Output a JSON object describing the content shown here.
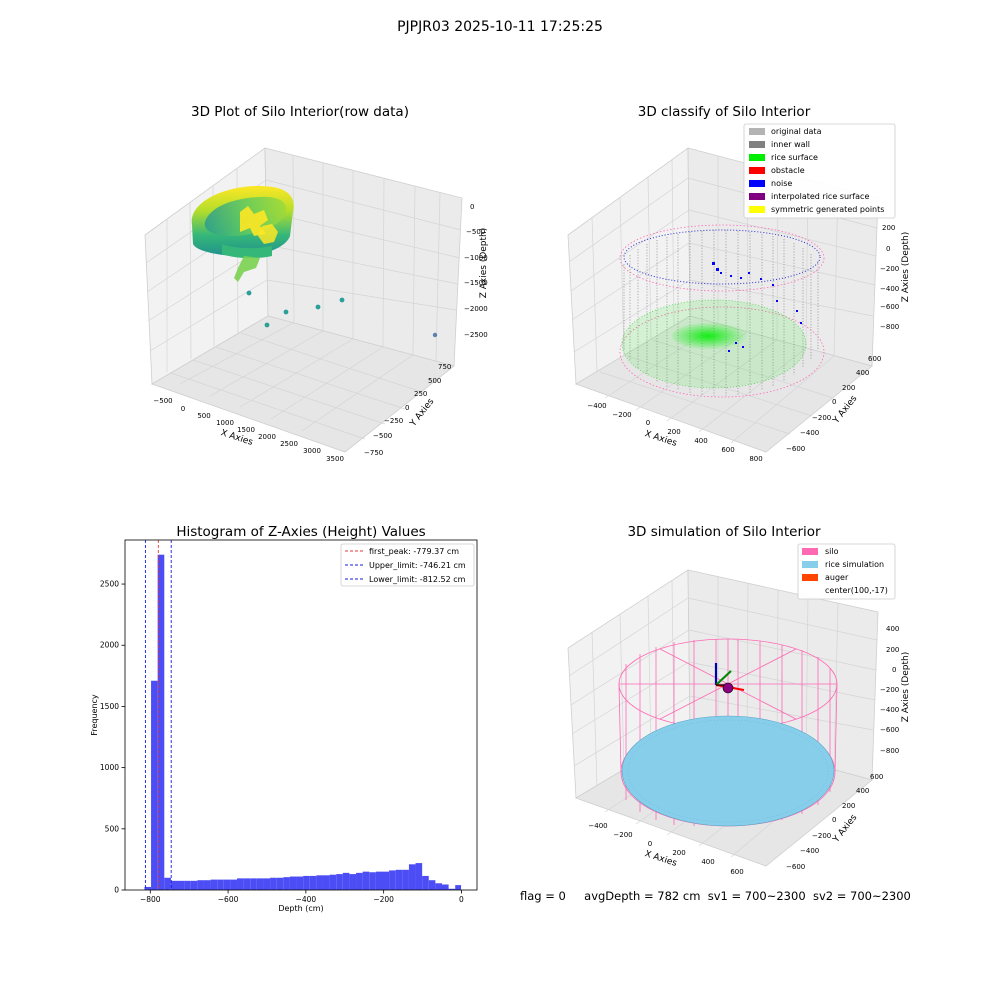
{
  "figure": {
    "suptitle": "PJPJR03 2025-10-11 17:25:25",
    "status_line": {
      "flag": "flag = 0",
      "avg_depth": "avgDepth = 782 cm",
      "sv1": "sv1 = 700~2300",
      "sv2": "sv2 = 700~2300"
    }
  },
  "colors": {
    "pane": "#f2f2f2",
    "grid": "#d9d9d9",
    "hist_bar": "#4d4df5",
    "peak_line": "#e03b3b",
    "limit_line": "#1a1adb",
    "silo": "#ff69b4",
    "rice_simulation": "#87ceeb",
    "auger": "#ff4500",
    "green_point": "#00ee00",
    "noise_point": "#0000ff",
    "wall_point": "#808080"
  },
  "chart_data": [
    {
      "type": "scatter",
      "projection": "3d",
      "title": "3D Plot of Silo Interior(row data)",
      "xlabel": "X Axies",
      "ylabel": "Y Axies",
      "zlabel": "Z Axies (Depth)",
      "x_ticks": [
        "−500",
        "0",
        "500",
        "1000",
        "1500",
        "2000",
        "2500",
        "3000",
        "3500"
      ],
      "y_ticks": [
        "−750",
        "−500",
        "−250",
        "0",
        "250",
        "500",
        "750"
      ],
      "z_ticks": [
        "0",
        "−500",
        "−1000",
        "−1500",
        "−2000",
        "−2500"
      ],
      "xlim": [
        -600,
        3500
      ],
      "ylim": [
        -800,
        800
      ],
      "zlim": [
        -2700,
        0
      ],
      "colormap": "viridis",
      "grid": true,
      "description_points": [
        {
          "x": 200,
          "y": 300,
          "z": -1800
        },
        {
          "x": 450,
          "y": -200,
          "z": -2100
        },
        {
          "x": 800,
          "y": -100,
          "z": -2000
        },
        {
          "x": 1300,
          "y": 100,
          "z": -1900
        },
        {
          "x": 1700,
          "y": 300,
          "z": -1800
        },
        {
          "x": 3300,
          "y": 200,
          "z": -2600
        }
      ]
    },
    {
      "type": "scatter",
      "projection": "3d",
      "title": "3D classify of Silo Interior",
      "xlabel": "X Axies",
      "ylabel": "Y Axies",
      "zlabel": "Z Axies (Depth)",
      "x_ticks": [
        "−400",
        "−200",
        "0",
        "200",
        "400",
        "600",
        "800"
      ],
      "y_ticks": [
        "−600",
        "−400",
        "−200",
        "0",
        "200",
        "400",
        "600"
      ],
      "z_ticks": [
        "200",
        "0",
        "−200",
        "−400",
        "−600",
        "−800"
      ],
      "xlim": [
        -500,
        800
      ],
      "ylim": [
        -650,
        650
      ],
      "zlim": [
        -900,
        300
      ],
      "grid": true,
      "legend_position": "top-right",
      "legend": [
        {
          "label": "original data",
          "color": "#b3b3b3"
        },
        {
          "label": "inner wall",
          "color": "#808080"
        },
        {
          "label": "rice surface",
          "color": "#00ee00"
        },
        {
          "label": "obstacle",
          "color": "#ff0000"
        },
        {
          "label": "noise",
          "color": "#0000ff"
        },
        {
          "label": "interpolated rice surface",
          "color": "#800080"
        },
        {
          "label": "symmetric generated points",
          "color": "#ffff00"
        }
      ]
    },
    {
      "type": "bar",
      "title": "Histogram of Z-Axies (Height) Values",
      "xlabel": "Depth (cm)",
      "ylabel": "Frequency",
      "xlim": [
        -865,
        40
      ],
      "ylim": [
        0,
        2860
      ],
      "x_ticks": [
        -800,
        -600,
        -400,
        -200,
        0
      ],
      "x_tick_labels": [
        "−800",
        "−600",
        "−400",
        "−200",
        "0"
      ],
      "y_ticks": [
        0,
        500,
        1000,
        1500,
        2000,
        2500
      ],
      "y_tick_labels": [
        "0",
        "500",
        "1000",
        "1500",
        "2000",
        "2500"
      ],
      "bin_edges": [
        -815,
        -798,
        -781,
        -764,
        -747,
        -730,
        -713,
        -696,
        -679,
        -662,
        -645,
        -628,
        -611,
        -594,
        -577,
        -560,
        -543,
        -526,
        -509,
        -492,
        -475,
        -458,
        -441,
        -424,
        -407,
        -390,
        -373,
        -356,
        -339,
        -322,
        -305,
        -288,
        -271,
        -254,
        -237,
        -220,
        -203,
        -186,
        -169,
        -152,
        -135,
        -118,
        -101,
        -84,
        -67,
        -50,
        -33,
        -16,
        -1
      ],
      "values": [
        25,
        1710,
        2740,
        100,
        75,
        75,
        75,
        75,
        80,
        80,
        85,
        85,
        85,
        85,
        95,
        95,
        95,
        95,
        95,
        100,
        100,
        105,
        110,
        110,
        115,
        115,
        120,
        120,
        125,
        130,
        140,
        130,
        140,
        150,
        145,
        150,
        150,
        160,
        165,
        165,
        210,
        220,
        115,
        80,
        55,
        45,
        10,
        40
      ],
      "reference_lines": [
        {
          "label": "first_peak: -779.37 cm",
          "x": -779.37,
          "color": "#e03b3b",
          "style": "dashed"
        },
        {
          "label": "Upper_limit: -746.21 cm",
          "x": -746.21,
          "color": "#1a1adb",
          "style": "dashed"
        },
        {
          "label": "Lower_limit: -812.52 cm",
          "x": -812.52,
          "color": "#1a1adb",
          "style": "dashed"
        }
      ],
      "legend_position": "top-right",
      "grid": false
    },
    {
      "type": "scatter",
      "projection": "3d",
      "title": "3D simulation of Silo Interior",
      "xlabel": "X Axies",
      "ylabel": "Y Axies",
      "zlabel": "Z Axies (Depth)",
      "x_ticks": [
        "−400",
        "−200",
        "0",
        "200",
        "400",
        "600"
      ],
      "y_ticks": [
        "−600",
        "−400",
        "−200",
        "0",
        "200",
        "400",
        "600"
      ],
      "z_ticks": [
        "400",
        "200",
        "0",
        "−200",
        "−400",
        "−600",
        "−800"
      ],
      "grid": true,
      "legend_position": "top-right",
      "legend": [
        {
          "label": "silo",
          "color": "#ff69b4",
          "kind": "patch"
        },
        {
          "label": "rice simulation",
          "color": "#87ceeb",
          "kind": "patch"
        },
        {
          "label": "auger",
          "color": "#ff4500",
          "kind": "patch"
        },
        {
          "label": "center(100,-17)",
          "color": "none",
          "kind": "blank"
        }
      ]
    }
  ]
}
